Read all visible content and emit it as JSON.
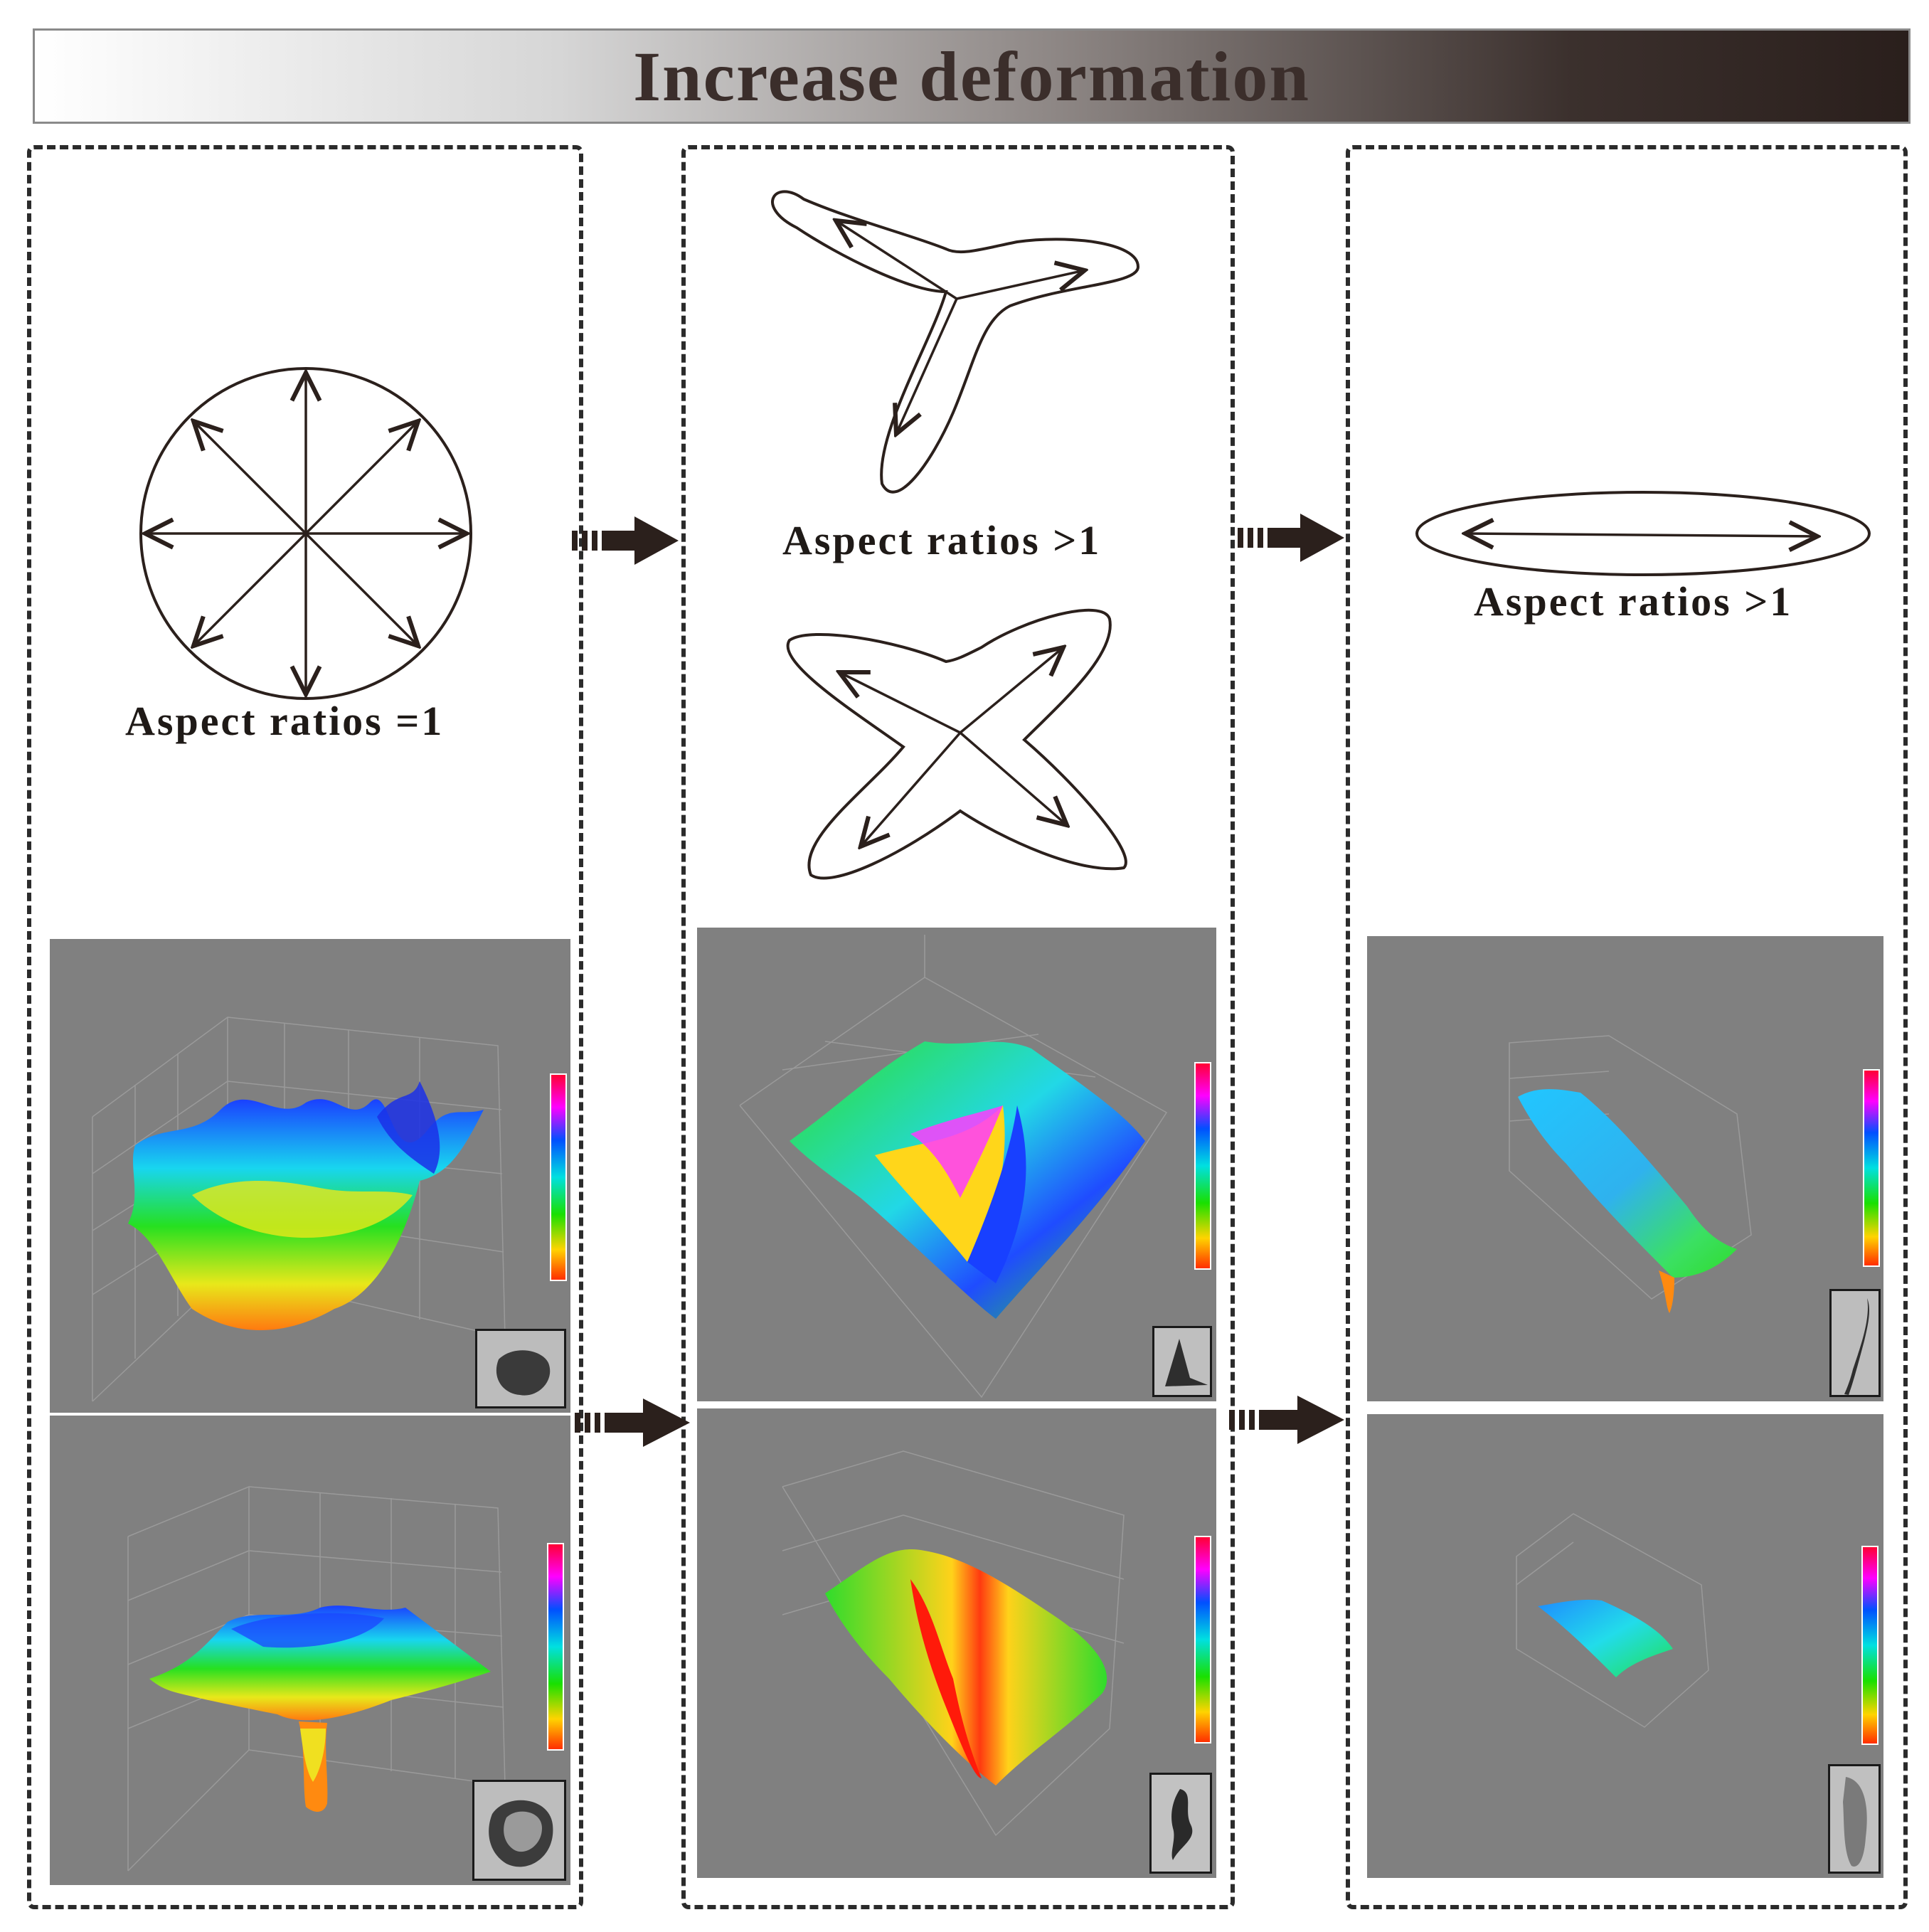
{
  "banner": {
    "title": "Increase deformation"
  },
  "columns": [
    {
      "caption": "Aspect ratios =1"
    },
    {
      "caption": "Aspect ratios >1"
    },
    {
      "caption": "Aspect ratios >1"
    }
  ],
  "colors": {
    "line": "#2b201c",
    "panel_bg": "#808080",
    "banner_dark": "#2a1f1c"
  }
}
